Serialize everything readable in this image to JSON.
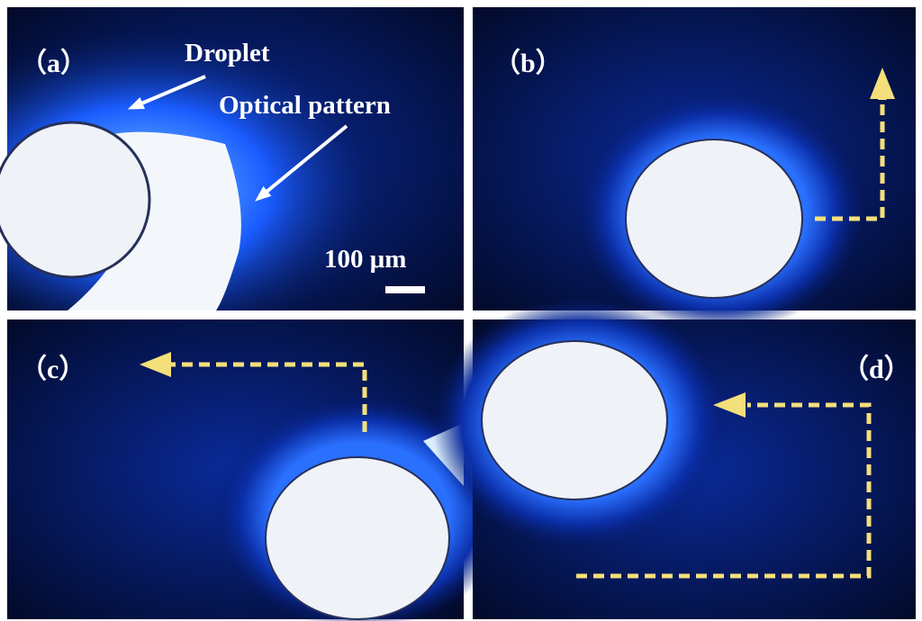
{
  "panels": [
    {
      "label": "（a）",
      "annotations": {
        "droplet": "Droplet",
        "optical_pattern": "Optical pattern",
        "scale_bar": "100 μm"
      }
    },
    {
      "label": "（b）"
    },
    {
      "label": "（c）"
    },
    {
      "label": "（d）"
    }
  ]
}
